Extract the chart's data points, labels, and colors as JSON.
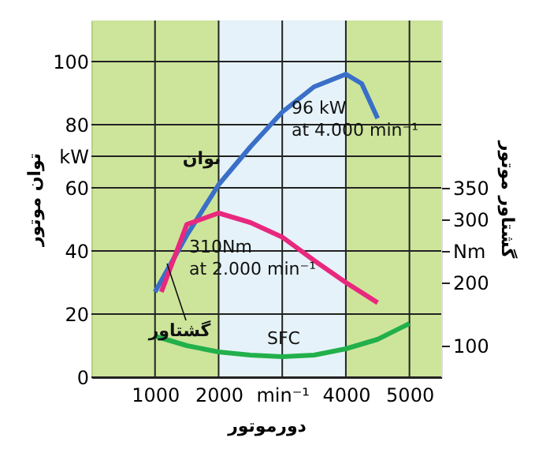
{
  "chart_data": {
    "type": "line",
    "xlabel": "دورموتور",
    "ylabel": "توان موتور",
    "y2label": "گشتاور موتور",
    "xlim": [
      0,
      5500
    ],
    "xticks": [
      1000,
      2000,
      {
        "value": 3000,
        "label": "min⁻¹"
      },
      4000,
      5000
    ],
    "ylim": [
      0,
      113
    ],
    "yticks": [
      0,
      20,
      40,
      60,
      {
        "value": 70,
        "label": "kW"
      },
      80,
      100
    ],
    "y2lim": [
      50,
      615
    ],
    "y2ticks": [
      100,
      200,
      {
        "value": 250,
        "label": "Nm"
      },
      300,
      350
    ],
    "grid": true,
    "line_style": "solid",
    "marker": "none",
    "bands": [
      {
        "axis": "x",
        "from": 0,
        "to": 2000,
        "color": "#c8e290"
      },
      {
        "axis": "x",
        "from": 2000,
        "to": 4000,
        "color": "#e2f1f8"
      },
      {
        "axis": "x",
        "from": 4000,
        "to": 5500,
        "color": "#c8e290"
      }
    ],
    "series": [
      {
        "name": "توان",
        "color": "#3a6fc8",
        "x": [
          1000,
          1500,
          2000,
          2500,
          3000,
          3500,
          4000,
          4250,
          4500
        ],
        "values": [
          27,
          45,
          61,
          73,
          84,
          92,
          96,
          93,
          82
        ]
      },
      {
        "name": "گشتاور",
        "color": "#e8287e",
        "axis": "y2",
        "x": [
          1100,
          1500,
          2000,
          2500,
          3000,
          3500,
          4000,
          4500
        ],
        "values": [
          185,
          292,
          310,
          295,
          272,
          235,
          200,
          168
        ]
      },
      {
        "name": "SFC",
        "color": "#22b04b",
        "x": [
          1000,
          1500,
          2000,
          2500,
          3000,
          3500,
          4000,
          4500,
          5000
        ],
        "values": [
          13,
          10,
          8,
          7,
          6.5,
          7,
          9,
          12,
          17
        ]
      }
    ],
    "annotations": [
      "96 kW\nat 4.000 min⁻¹",
      "310Nm\nat 2.000 min⁻¹"
    ]
  }
}
